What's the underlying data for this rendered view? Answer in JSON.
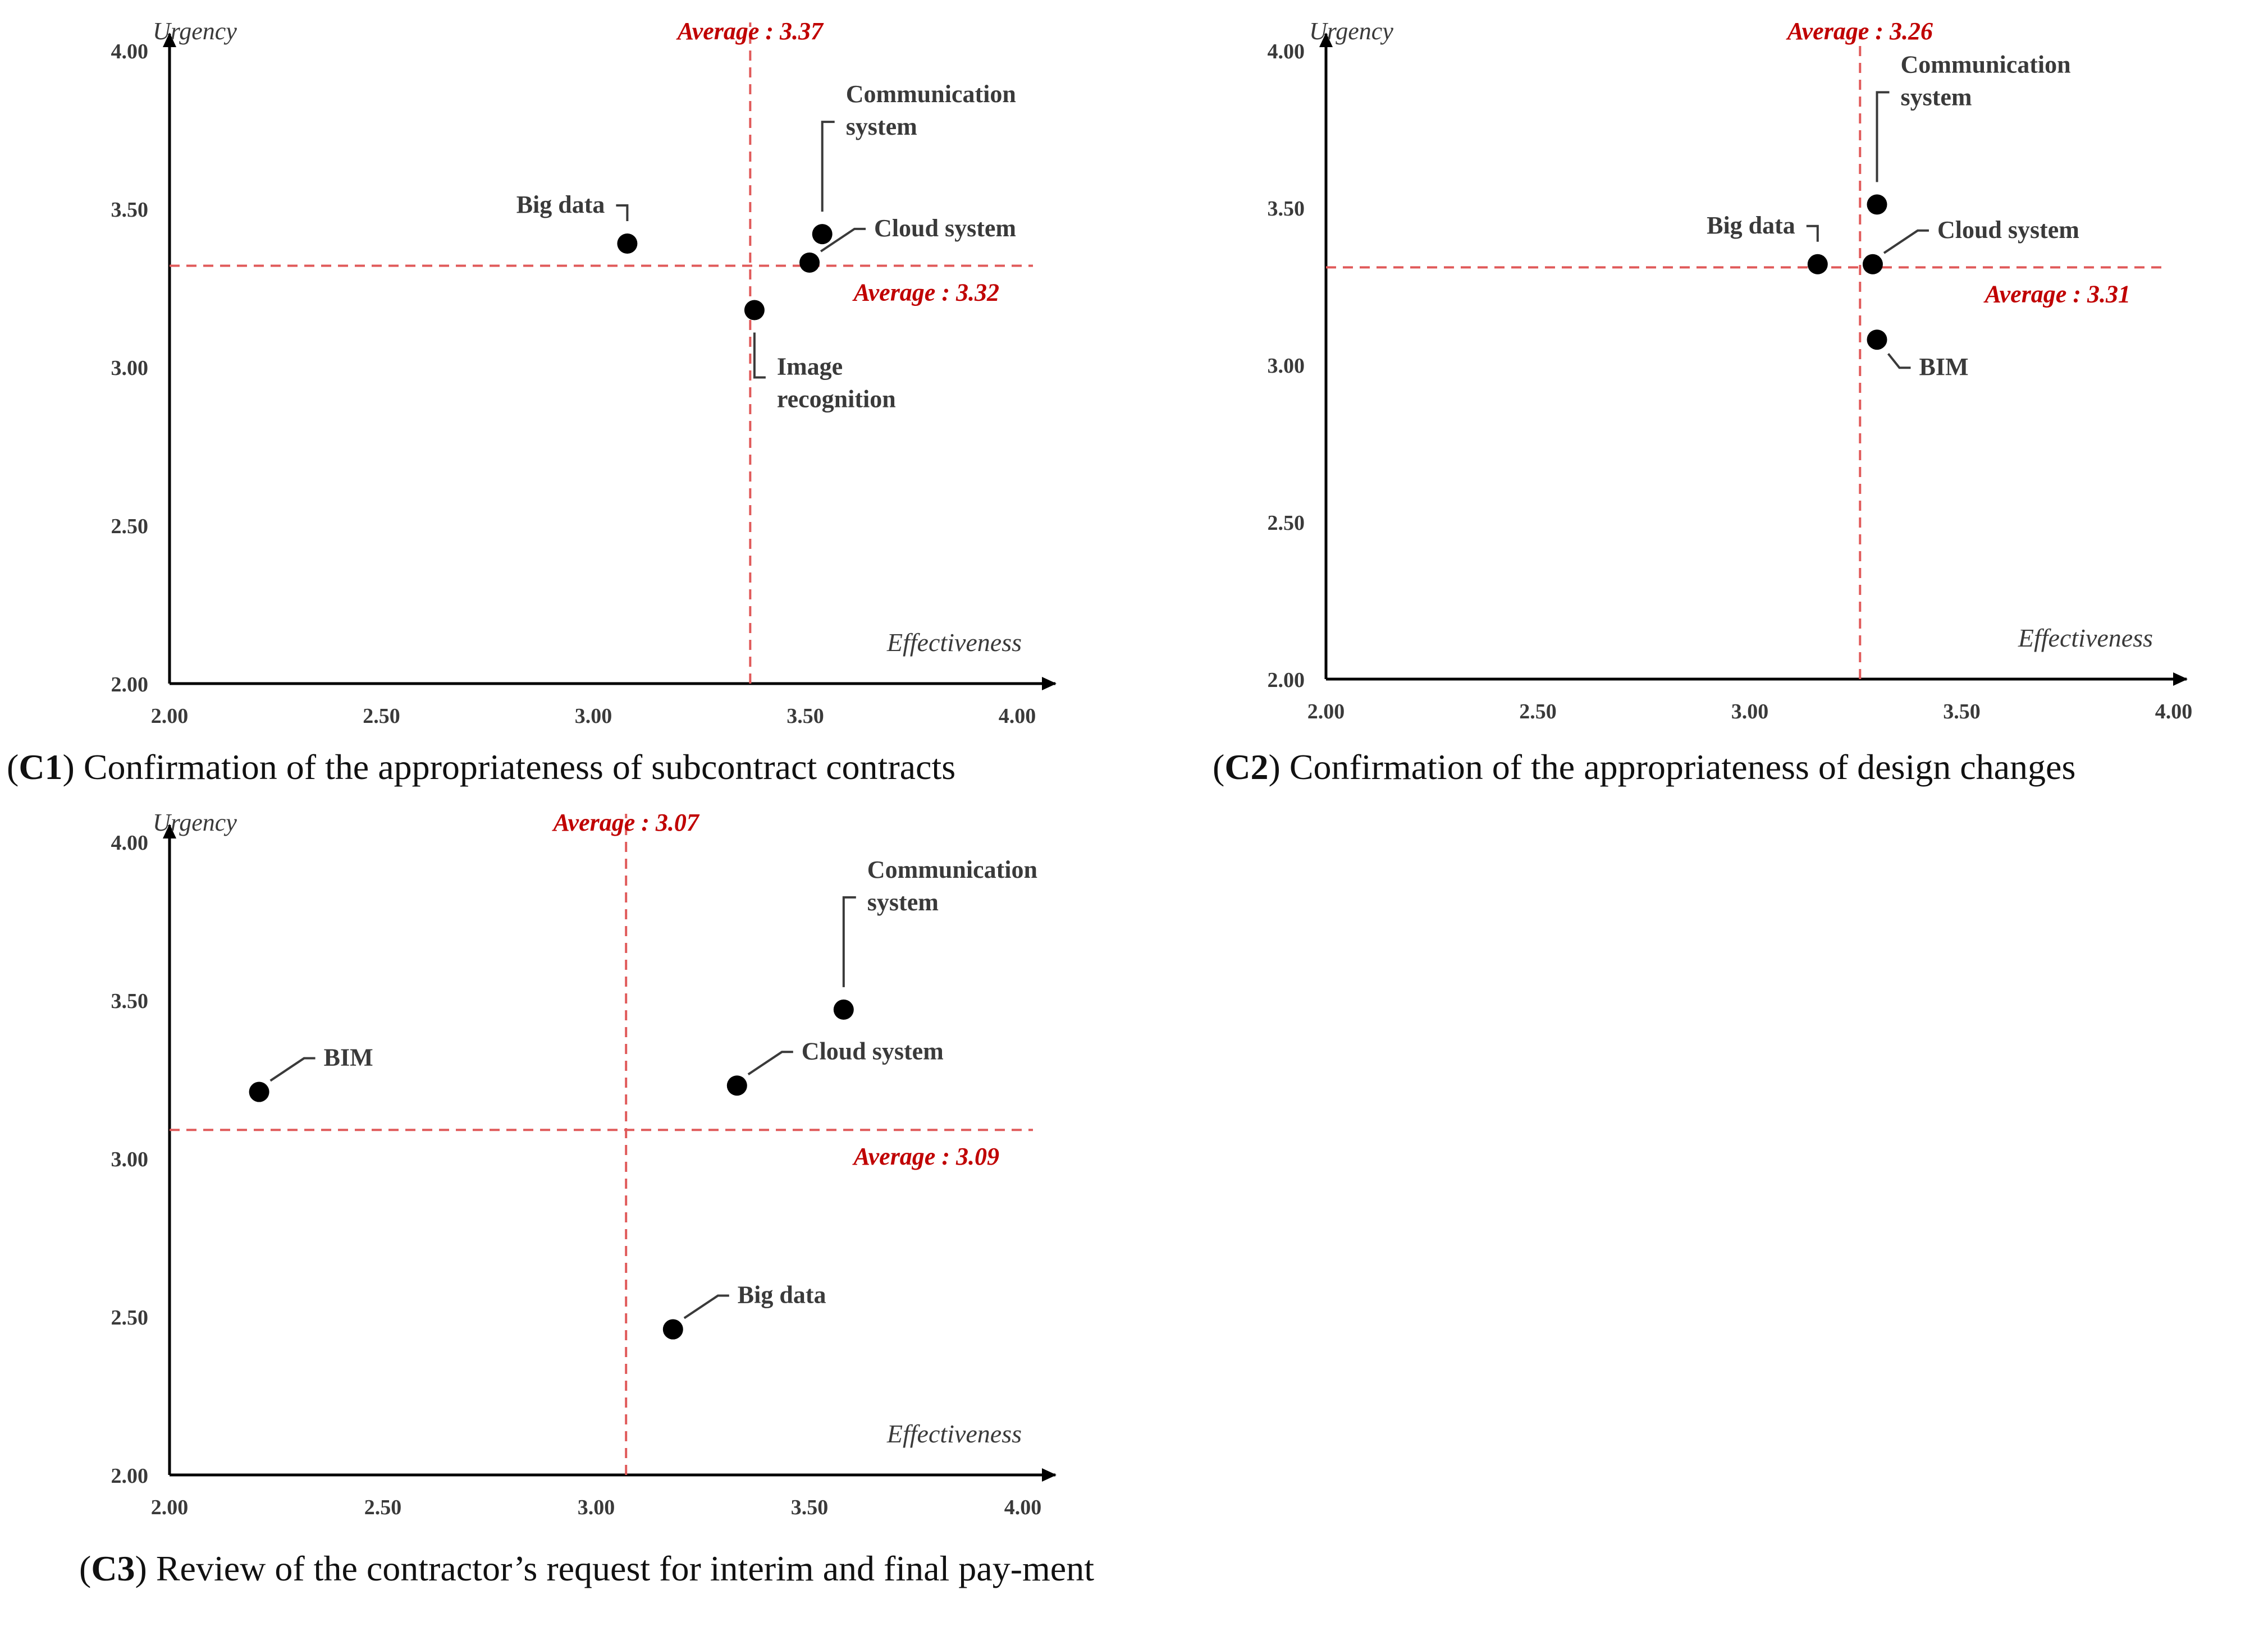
{
  "colors": {
    "axis": "#000000",
    "text": "#3a3a3a",
    "average": "#e05a5a",
    "average_text": "#c00000",
    "point": "#000000"
  },
  "chart_data": [
    {
      "type": "scatter",
      "id": "C1",
      "caption_label": "C1",
      "caption_text": "Confirmation of the appropriateness of subcontract contracts",
      "xlabel": "Effectiveness",
      "ylabel": "Urgency",
      "xlim": [
        2.0,
        4.0
      ],
      "ylim": [
        2.0,
        4.0
      ],
      "xticks": [
        "2.00",
        "2.50",
        "3.00",
        "3.50",
        "4.00"
      ],
      "yticks": [
        "2.00",
        "2.50",
        "3.00",
        "3.50",
        "4.00"
      ],
      "x_average_label": "Average : 3.37",
      "y_average_label": "Average : 3.32",
      "x_average": 3.37,
      "y_average": 3.32,
      "points": [
        {
          "name": "Big data",
          "label_lines": [
            "Big data"
          ],
          "x": 3.08,
          "y": 3.39
        },
        {
          "name": "Communication system",
          "label_lines": [
            "Communication",
            "system"
          ],
          "x": 3.54,
          "y": 3.42
        },
        {
          "name": "Cloud system",
          "label_lines": [
            "Cloud system"
          ],
          "x": 3.51,
          "y": 3.33
        },
        {
          "name": "Image recognition",
          "label_lines": [
            "Image",
            "recognition"
          ],
          "x": 3.38,
          "y": 3.18
        }
      ]
    },
    {
      "type": "scatter",
      "id": "C2",
      "caption_label": "C2",
      "caption_text": "Confirmation of the appropriateness of design changes",
      "xlabel": "Effectiveness",
      "ylabel": "Urgency",
      "xlim": [
        2.0,
        4.0
      ],
      "ylim": [
        2.0,
        4.0
      ],
      "xticks": [
        "2.00",
        "2.50",
        "3.00",
        "3.50",
        "4.00"
      ],
      "yticks": [
        "2.00",
        "2.50",
        "3.00",
        "3.50",
        "4.00"
      ],
      "x_average_label": "Average : 3.26",
      "y_average_label": "Average : 3.31",
      "x_average": 3.26,
      "y_average": 3.31,
      "points": [
        {
          "name": "Communication system",
          "label_lines": [
            "Communication",
            "system"
          ],
          "x": 3.3,
          "y": 3.51
        },
        {
          "name": "Big data",
          "label_lines": [
            "Big data"
          ],
          "x": 3.16,
          "y": 3.32
        },
        {
          "name": "Cloud system",
          "label_lines": [
            "Cloud system"
          ],
          "x": 3.29,
          "y": 3.32
        },
        {
          "name": "BIM",
          "label_lines": [
            "BIM"
          ],
          "x": 3.3,
          "y": 3.08
        }
      ]
    },
    {
      "type": "scatter",
      "id": "C3",
      "caption_label": "C3",
      "caption_text": "Review of the contractor’s request for interim and final pay-ment",
      "xlabel": "Effectiveness",
      "ylabel": "Urgency",
      "xlim": [
        2.0,
        4.0
      ],
      "ylim": [
        2.0,
        4.0
      ],
      "xticks": [
        "2.00",
        "2.50",
        "3.00",
        "3.50",
        "4.00"
      ],
      "yticks": [
        "2.00",
        "2.50",
        "3.00",
        "3.50",
        "4.00"
      ],
      "x_average_label": "Average : 3.07",
      "y_average_label": "Average : 3.09",
      "x_average": 3.07,
      "y_average": 3.09,
      "points": [
        {
          "name": "BIM",
          "label_lines": [
            "BIM"
          ],
          "x": 2.21,
          "y": 3.21
        },
        {
          "name": "Communication system",
          "label_lines": [
            "Communication",
            "system"
          ],
          "x": 3.58,
          "y": 3.47
        },
        {
          "name": "Cloud system",
          "label_lines": [
            "Cloud system"
          ],
          "x": 3.33,
          "y": 3.23
        },
        {
          "name": "Big data",
          "label_lines": [
            "Big data"
          ],
          "x": 3.18,
          "y": 2.46
        }
      ]
    }
  ]
}
